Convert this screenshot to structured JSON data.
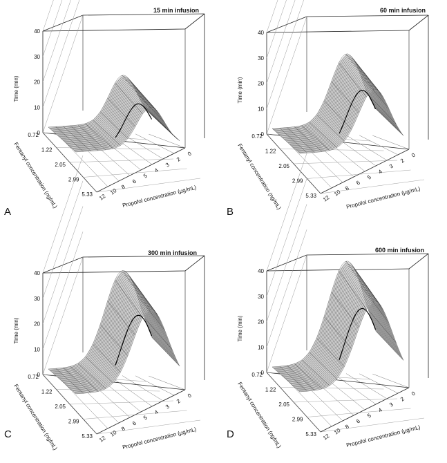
{
  "figure": {
    "panels": [
      {
        "letter": "A",
        "title": "15 min infusion"
      },
      {
        "letter": "B",
        "title": "60 min infusion"
      },
      {
        "letter": "C",
        "title": "300 min infusion"
      },
      {
        "letter": "D",
        "title": "600 min infusion"
      }
    ]
  },
  "chart_data": [
    {
      "type": "surface",
      "title": "15 min infusion",
      "zlabel": "Time (min)",
      "xlabel": "Propofol concentration (µg/mL)",
      "ylabel": "Fentanyl concentration (ng/mL)",
      "z_ticks": [
        0,
        10,
        20,
        30,
        40
      ],
      "propofol_ticks": [
        0,
        2,
        3,
        4,
        5,
        6,
        8,
        10,
        12
      ],
      "fentanyl_ticks": [
        0.72,
        1.22,
        2.05,
        2.99,
        5.33
      ],
      "zlim": [
        0,
        40
      ],
      "surface_scale": 0.4
    },
    {
      "type": "surface",
      "title": "60 min infusion",
      "zlabel": "Time (min)",
      "xlabel": "Propofol concentration (µg/mL)",
      "ylabel": "Fentanyl concentration (ng/mL)",
      "z_ticks": [
        0,
        10,
        20,
        30,
        40
      ],
      "propofol_ticks": [
        0,
        2,
        3,
        4,
        5,
        6,
        8,
        10,
        12
      ],
      "fentanyl_ticks": [
        0.72,
        1.22,
        2.05,
        2.99,
        5.33
      ],
      "zlim": [
        0,
        40
      ],
      "surface_scale": 0.62
    },
    {
      "type": "surface",
      "title": "300 min infusion",
      "zlabel": "Time (min)",
      "xlabel": "Propofol concentration (µg/mL)",
      "ylabel": "Fentanyl concentration (ng/mL)",
      "z_ticks": [
        0,
        10,
        20,
        30,
        40
      ],
      "propofol_ticks": [
        0,
        2,
        3,
        4,
        5,
        6,
        8,
        10,
        12
      ],
      "fentanyl_ticks": [
        0.72,
        1.22,
        2.05,
        2.99,
        5.33
      ],
      "zlim": [
        0,
        40
      ],
      "surface_scale": 0.85
    },
    {
      "type": "surface",
      "title": "600 min infusion",
      "zlabel": "Time (min)",
      "xlabel": "Propofol concentration (µg/mL)",
      "ylabel": "Fentanyl concentration (ng/mL)",
      "z_ticks": [
        0,
        10,
        20,
        30,
        40
      ],
      "propofol_ticks": [
        0,
        2,
        3,
        4,
        5,
        6,
        8,
        10,
        12
      ],
      "fentanyl_ticks": [
        0.72,
        1.22,
        2.05,
        2.99,
        5.33
      ],
      "zlim": [
        0,
        40
      ],
      "surface_scale": 0.92
    }
  ]
}
